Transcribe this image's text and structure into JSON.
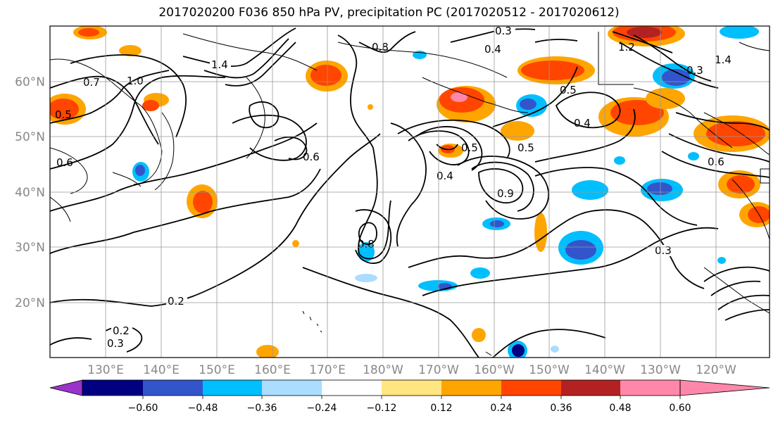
{
  "title": "2017020200 F036 850 hPa PV, precipitation PC (2017020512 - 2017020612)",
  "lon_labels": [
    "130°E",
    "140°E",
    "150°E",
    "160°E",
    "170°E",
    "180°W",
    "170°W",
    "160°W",
    "150°W",
    "140°W",
    "130°W",
    "120°W"
  ],
  "lat_labels": [
    "60°N",
    "50°N",
    "40°N",
    "30°N",
    "20°N"
  ],
  "colorbar": {
    "ticks": [
      "−0.60",
      "−0.48",
      "−0.36",
      "−0.24",
      "−0.12",
      "0.12",
      "0.24",
      "0.36",
      "0.48",
      "0.60"
    ],
    "colors": [
      "#9933cc",
      "#000080",
      "#3355cc",
      "#00bfff",
      "#aaddff",
      "#ffffff",
      "#ffe680",
      "#ffa500",
      "#ff4500",
      "#b22222",
      "#ff88aa"
    ]
  },
  "contour_labels": [
    "0.3",
    "0.4",
    "1.4",
    "1.2",
    "1.0",
    "0.7",
    "0.5",
    "0.8",
    "0.6",
    "0.3",
    "0.5",
    "0.4",
    "0.5",
    "0.3",
    "0.4",
    "0.2",
    "0.2",
    "0.3",
    "0.5",
    "1.4",
    "0.6",
    "0.6",
    "0.9",
    "0.8"
  ]
}
